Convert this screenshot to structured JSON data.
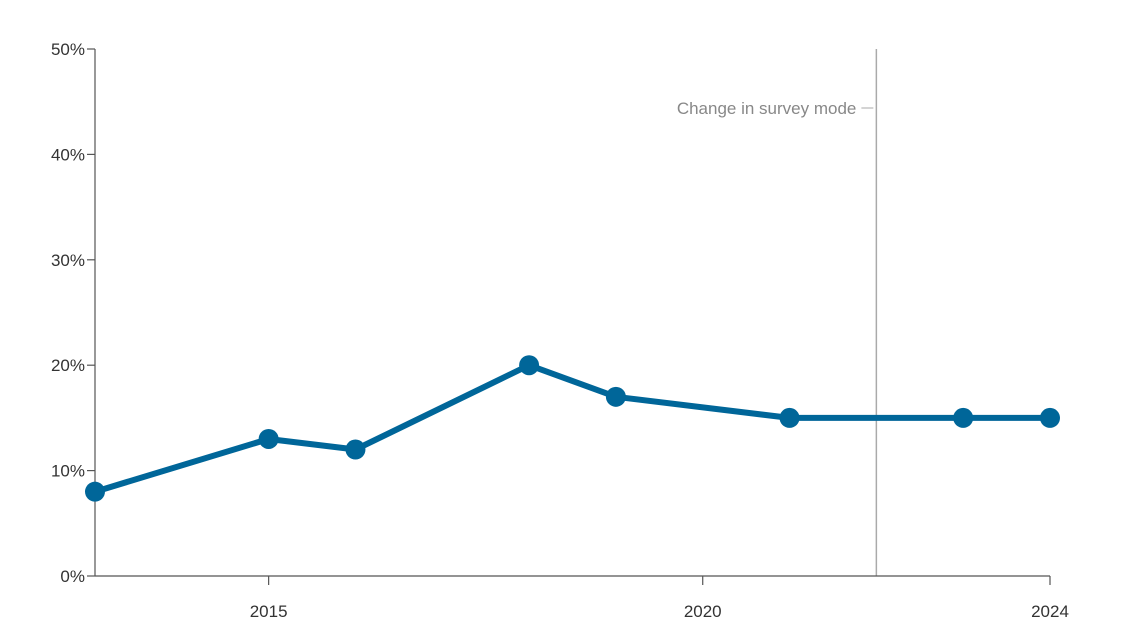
{
  "chart_data": {
    "type": "line",
    "x": [
      2013,
      2015,
      2016,
      2018,
      2019,
      2021,
      2023,
      2024
    ],
    "series": [
      {
        "values": [
          8,
          13,
          12,
          20,
          17,
          15,
          15,
          15
        ],
        "color": "#006699"
      }
    ],
    "xlim": [
      2013,
      2024
    ],
    "ylim": [
      0,
      50
    ],
    "x_ticks": [
      2015,
      2020,
      2024
    ],
    "x_tick_labels": [
      "2015",
      "2020",
      "2024"
    ],
    "y_ticks": [
      0,
      10,
      20,
      30,
      40,
      50
    ],
    "y_tick_labels": [
      "0%",
      "10%",
      "20%",
      "30%",
      "40%",
      "50%"
    ],
    "title": "",
    "xlabel": "",
    "ylabel": "",
    "grid": false,
    "annotations": [
      {
        "x": 2022,
        "label": "Change in survey mode",
        "color": "#888888",
        "line_color": "#aaaaaa"
      }
    ]
  }
}
